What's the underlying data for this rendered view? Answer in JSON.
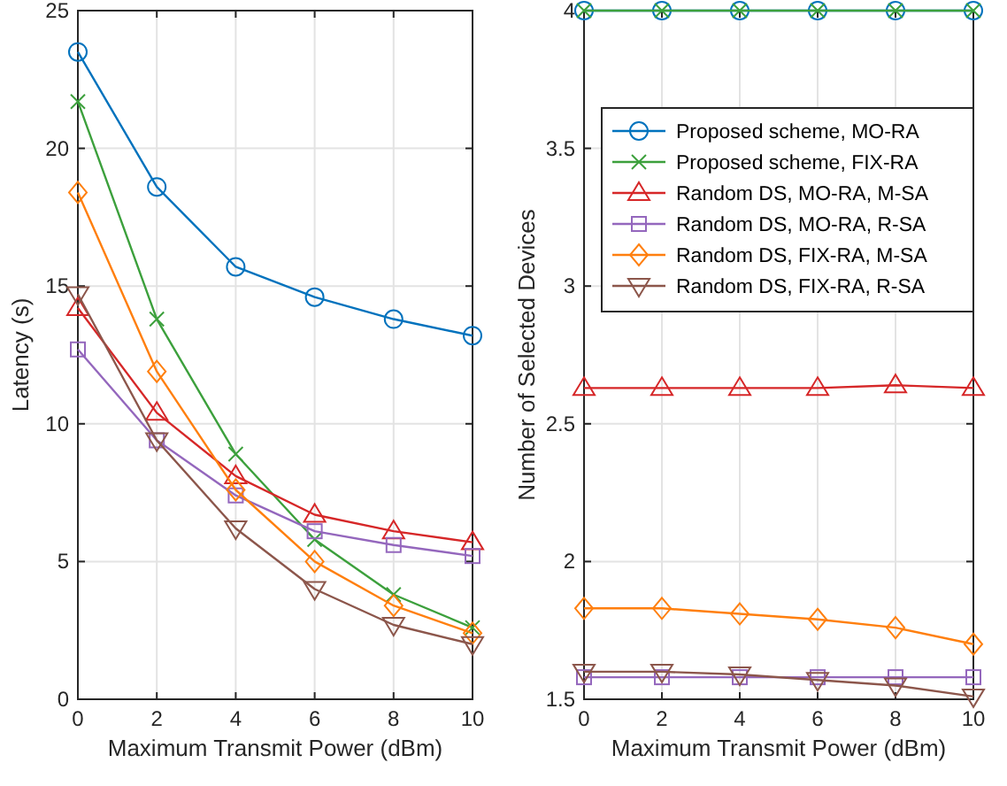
{
  "chart_data": [
    {
      "type": "line",
      "xlabel": "Maximum Transmit Power (dBm)",
      "ylabel": "Latency (s)",
      "x": [
        0,
        2,
        4,
        6,
        8,
        10
      ],
      "xlim": [
        0,
        10
      ],
      "xticks": [
        0,
        2,
        4,
        6,
        8,
        10
      ],
      "ylim": [
        0,
        25
      ],
      "yticks": [
        0,
        5,
        10,
        15,
        20,
        25
      ],
      "grid": true,
      "legend": false,
      "series": [
        {
          "color": "#0072bd",
          "marker": "circle",
          "values": [
            23.5,
            18.6,
            15.7,
            14.6,
            13.8,
            13.2
          ]
        },
        {
          "color": "#3ca03c",
          "marker": "cross",
          "values": [
            21.7,
            13.8,
            8.9,
            5.8,
            3.8,
            2.6
          ]
        },
        {
          "color": "#d62728",
          "marker": "triangle",
          "values": [
            14.2,
            10.4,
            8.1,
            6.7,
            6.1,
            5.7
          ]
        },
        {
          "color": "#9467bd",
          "marker": "square",
          "values": [
            12.7,
            9.4,
            7.4,
            6.1,
            5.6,
            5.2
          ]
        },
        {
          "color": "#ff7f0e",
          "marker": "diamond",
          "values": [
            18.4,
            11.9,
            7.6,
            5.0,
            3.4,
            2.4
          ]
        },
        {
          "color": "#8c564b",
          "marker": "triangle-down",
          "values": [
            14.7,
            9.4,
            6.2,
            4.0,
            2.7,
            2.0
          ]
        }
      ]
    },
    {
      "type": "line",
      "xlabel": "Maximum Transmit Power (dBm)",
      "ylabel": "Number of Selected Devices",
      "x": [
        0,
        2,
        4,
        6,
        8,
        10
      ],
      "xlim": [
        0,
        10
      ],
      "xticks": [
        0,
        2,
        4,
        6,
        8,
        10
      ],
      "ylim": [
        1.5,
        4
      ],
      "yticks": [
        1.5,
        2,
        2.5,
        3,
        3.5,
        4
      ],
      "grid": true,
      "legend": "top right",
      "series": [
        {
          "name": "Proposed scheme, MO-RA",
          "color": "#0072bd",
          "marker": "circle",
          "values": [
            4,
            4,
            4,
            4,
            4,
            4
          ]
        },
        {
          "name": "Proposed scheme, FIX-RA",
          "color": "#3ca03c",
          "marker": "cross",
          "values": [
            4,
            4,
            4,
            4,
            4,
            4
          ]
        },
        {
          "name": "Random DS, MO-RA, M-SA",
          "color": "#d62728",
          "marker": "triangle",
          "values": [
            2.63,
            2.63,
            2.63,
            2.63,
            2.64,
            2.63
          ]
        },
        {
          "name": "Random DS, MO-RA, R-SA",
          "color": "#9467bd",
          "marker": "square",
          "values": [
            1.58,
            1.58,
            1.58,
            1.58,
            1.58,
            1.58
          ]
        },
        {
          "name": "Random DS, FIX-RA, M-SA",
          "color": "#ff7f0e",
          "marker": "diamond",
          "values": [
            1.83,
            1.83,
            1.81,
            1.79,
            1.76,
            1.7
          ]
        },
        {
          "name": "Random DS, FIX-RA, R-SA",
          "color": "#8c564b",
          "marker": "triangle-down",
          "values": [
            1.6,
            1.6,
            1.59,
            1.57,
            1.55,
            1.51
          ]
        }
      ]
    }
  ]
}
